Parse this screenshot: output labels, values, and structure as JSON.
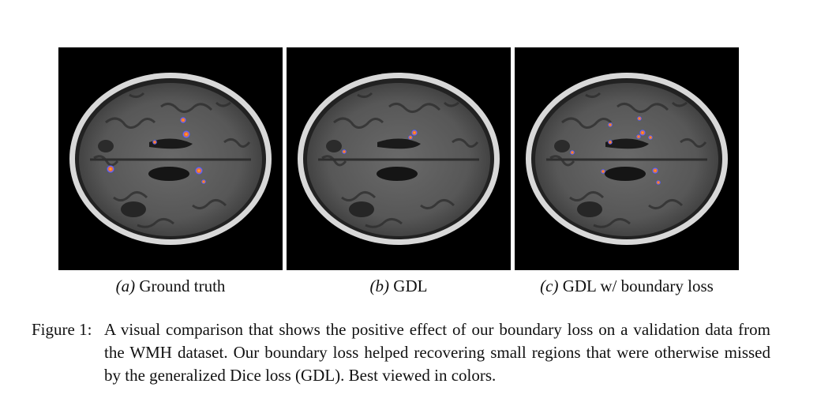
{
  "figure": {
    "label": "Figure 1:",
    "caption": "A visual comparison that shows the positive effect of our boundary loss on a validation data from the WMH dataset.  Our boundary loss helped recovering small regions that were otherwise missed by the generalized Dice loss (GDL). Best viewed in colors."
  },
  "panels": [
    {
      "id": "a",
      "label": "(a)",
      "title": "Ground truth"
    },
    {
      "id": "b",
      "label": "(b)",
      "title": "GDL"
    },
    {
      "id": "c",
      "label": "(c)",
      "title": "GDL w/ boundary loss"
    }
  ],
  "colors": {
    "lesion_core": "#ff7a1a",
    "lesion_rim": "#3f7fff",
    "background": "#000000"
  }
}
